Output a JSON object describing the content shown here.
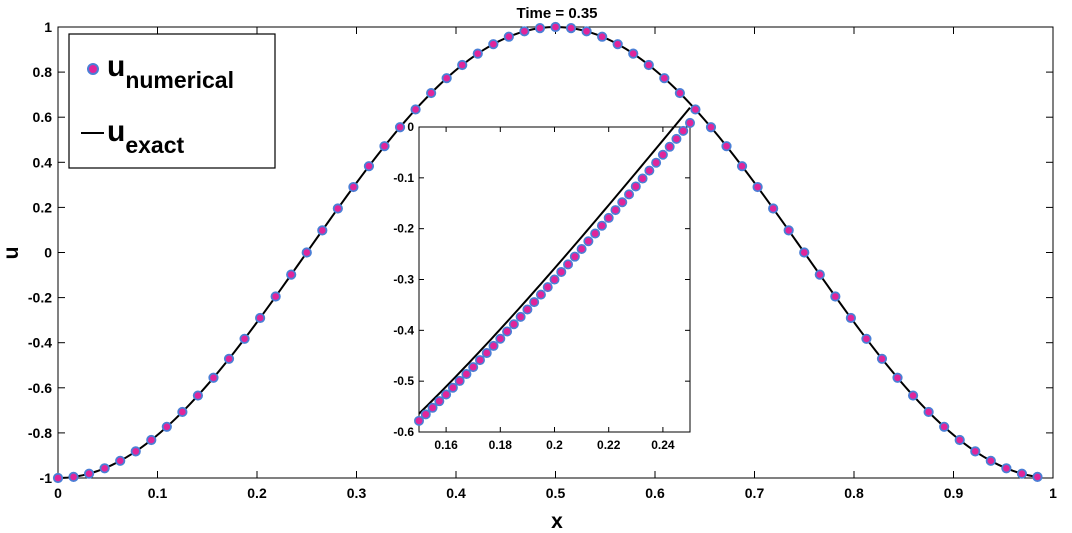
{
  "chart_data": [
    {
      "id": "main",
      "type": "line",
      "title": "Time = 0.35",
      "xlabel": "x",
      "ylabel": "u",
      "xlim": [
        0,
        1
      ],
      "ylim": [
        -1,
        1
      ],
      "xticks": [
        "0",
        "0.1",
        "0.2",
        "0.3",
        "0.4",
        "0.5",
        "0.6",
        "0.7",
        "0.8",
        "0.9",
        "1"
      ],
      "yticks": [
        "-1",
        "-0.8",
        "-0.6",
        "-0.4",
        "-0.2",
        "0",
        "0.2",
        "0.4",
        "0.6",
        "0.8",
        "1"
      ],
      "legend_position": "top-left",
      "grid": false,
      "series": [
        {
          "name": "u_numerical",
          "legend_base": "u",
          "legend_sub": "numerical",
          "style": "markers",
          "marker_face": "#e0259a",
          "marker_edge": "#4a7fd6",
          "x_start": 0,
          "x_step": 0.015625,
          "x_end": 0.984375,
          "formula": "u = -cos(2*pi*x)",
          "y_sample": {
            "x": [
              0,
              0.125,
              0.25,
              0.375,
              0.5,
              0.625,
              0.75,
              0.875,
              0.984375
            ],
            "y": [
              -1,
              -0.707,
              0,
              0.707,
              1,
              0.707,
              0,
              -0.707,
              -0.995
            ]
          }
        },
        {
          "name": "u_exact",
          "legend_base": "u",
          "legend_sub": "exact",
          "style": "line",
          "color": "#000000",
          "formula": "u = -cos(2*pi*x)"
        }
      ]
    },
    {
      "id": "inset",
      "type": "line",
      "xlim": [
        0.15,
        0.25
      ],
      "ylim": [
        -0.6,
        0
      ],
      "xticks": [
        "0.16",
        "0.18",
        "0.2",
        "0.22",
        "0.24"
      ],
      "yticks": [
        "-0.6",
        "-0.5",
        "-0.4",
        "-0.3",
        "-0.2",
        "-0.1",
        "0"
      ],
      "series": [
        {
          "name": "u_numerical",
          "style": "markers",
          "x_start": 0.15,
          "x_step": 0.0025,
          "x_end": 0.25,
          "y_sample": {
            "x": [
              0.15,
              0.2,
              0.25
            ],
            "y": [
              -0.578,
              -0.298,
              0.008
            ]
          }
        },
        {
          "name": "u_exact",
          "style": "line",
          "x": [
            0.15,
            0.2,
            0.25
          ],
          "y": [
            -0.564,
            -0.27,
            0.038
          ]
        }
      ]
    }
  ]
}
